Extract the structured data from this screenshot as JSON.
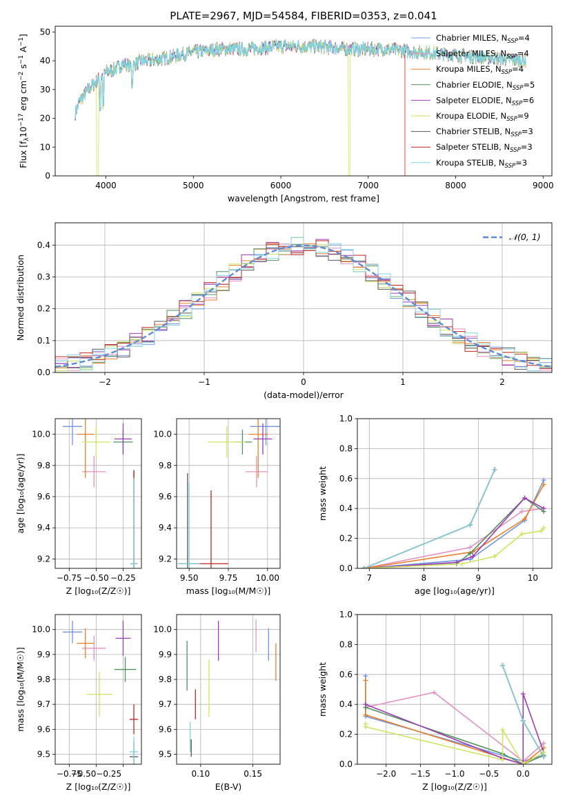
{
  "chart_data": [
    {
      "id": "spectrum",
      "type": "line",
      "title": "PLATE=2967, MJD=54584, FIBERID=0353, z=0.041",
      "xlabel": "wavelength [Angstrom, rest frame]",
      "ylabel_parts": [
        "Flux [f",
        "λ",
        "10",
        "−17",
        " erg cm",
        "−2",
        " s",
        "−1",
        " A",
        "−1",
        "]"
      ],
      "xlim": [
        3420,
        9100
      ],
      "ylim": [
        0,
        52
      ],
      "xticks": [
        4000,
        5000,
        6000,
        7000,
        8000,
        9000
      ],
      "yticks": [
        0,
        10,
        20,
        30,
        40,
        50
      ],
      "grid": false,
      "legend_position": "top-right",
      "trend_x": [
        3650,
        3700,
        3800,
        3900,
        4000,
        4100,
        4200,
        4300,
        4400,
        4500,
        4700,
        5000,
        5300,
        5600,
        6000,
        6400,
        6800,
        7200,
        7600,
        8000,
        8400,
        8800
      ],
      "trend_y": [
        22,
        26,
        30,
        33,
        36,
        37,
        39,
        38,
        40,
        40,
        41,
        43,
        44,
        44,
        45,
        45,
        44,
        44,
        43,
        42,
        41,
        40
      ],
      "legend": [
        {
          "label": "Chabrier MILES, N",
          "sub": "SSP",
          "suffix": "=4",
          "color": "#6f95e0"
        },
        {
          "label": "Salpeter MILES, N",
          "sub": "SSP",
          "suffix": "=4",
          "color": "#e48fc2"
        },
        {
          "label": "Kroupa MILES, N",
          "sub": "SSP",
          "suffix": "=4",
          "color": "#e97f2a"
        },
        {
          "label": "Chabrier ELODIE, N",
          "sub": "SSP",
          "suffix": "=5",
          "color": "#4f8f5c"
        },
        {
          "label": "Salpeter ELODIE, N",
          "sub": "SSP",
          "suffix": "=6",
          "color": "#9b3cb5"
        },
        {
          "label": "Kroupa ELODIE, N",
          "sub": "SSP",
          "suffix": "=9",
          "color": "#cfe35f"
        },
        {
          "label": "Chabrier STELIB, N",
          "sub": "SSP",
          "suffix": "=3",
          "color": "#555555"
        },
        {
          "label": "Salpeter STELIB, N",
          "sub": "SSP",
          "suffix": "=3",
          "color": "#c2241e"
        },
        {
          "label": "Kroupa STELIB, N",
          "sub": "SSP",
          "suffix": "=3",
          "color": "#7fd3e0"
        }
      ]
    },
    {
      "id": "residuals",
      "type": "area",
      "xlabel": "(data-model)/error",
      "ylabel": "Normed distribution",
      "xlim": [
        -2.5,
        2.5
      ],
      "ylim": [
        0,
        0.47
      ],
      "xticks": [
        -2,
        -1,
        0,
        1,
        2
      ],
      "xticklabels": [
        "−2",
        "−1",
        "0",
        "1",
        "2"
      ],
      "yticks": [
        0.0,
        0.1,
        0.2,
        0.3,
        0.4
      ],
      "grid": true,
      "legend_position": "top-right",
      "reference_label": "𝒩(0, 1)",
      "reference_color": "#5d8ad6",
      "bin_width": 0.125
    },
    {
      "id": "age-vs-Z",
      "type": "scatter",
      "xlabel": "Z [log₁₀(Z/Z☉)]",
      "ylabel": "age  [log₁₀(age/yr)]",
      "xlim": [
        -0.88,
        -0.08
      ],
      "ylim": [
        9.14,
        10.1
      ],
      "xticks": [
        -0.75,
        -0.5,
        -0.25
      ],
      "xticklabels": [
        "−0.75",
        "−0.50",
        "−0.25"
      ],
      "yticks": [
        9.2,
        9.4,
        9.6,
        9.8,
        10.0
      ],
      "grid": true,
      "points": [
        {
          "x": -0.72,
          "y": 10.05,
          "xerr": 0.09,
          "yerr": 0.12,
          "color": "#6f95e0"
        },
        {
          "x": -0.52,
          "y": 9.76,
          "xerr": 0.11,
          "yerr": 0.1,
          "color": "#e48fc2"
        },
        {
          "x": -0.6,
          "y": 10.0,
          "xerr": 0.08,
          "yerr": 0.28,
          "color": "#e97f2a"
        },
        {
          "x": -0.25,
          "y": 9.95,
          "xerr": 0.09,
          "yerr": 0.08,
          "color": "#4f8f5c"
        },
        {
          "x": -0.25,
          "y": 9.97,
          "xerr": 0.08,
          "yerr": 0.1,
          "color": "#9b3cb5"
        },
        {
          "x": -0.5,
          "y": 9.95,
          "xerr": 0.13,
          "yerr": 0.1,
          "color": "#cfe35f"
        },
        {
          "x": -0.15,
          "y": 9.17,
          "xerr": 0.03,
          "yerr": 0.6,
          "color": "#555555"
        },
        {
          "x": -0.15,
          "y": 9.17,
          "xerr": 0.03,
          "yerr": 0.6,
          "color": "#c2241e"
        },
        {
          "x": -0.15,
          "y": 9.17,
          "xerr": 0.03,
          "yerr": 0.55,
          "color": "#7fd3e0"
        }
      ]
    },
    {
      "id": "age-vs-mass",
      "type": "scatter",
      "xlabel": "mass [log₁₀(M/M☉)]",
      "xlim": [
        9.42,
        10.08
      ],
      "ylim": [
        9.14,
        10.1
      ],
      "xticks": [
        9.5,
        9.75,
        10.0
      ],
      "xticklabels": [
        "9.50",
        "9.75",
        "10.00"
      ],
      "yticks": [
        9.2,
        9.4,
        9.6,
        9.8,
        10.0
      ],
      "grid": true,
      "points": [
        {
          "x": 9.99,
          "y": 10.05,
          "xerr": 0.1,
          "yerr": 0.12,
          "color": "#6f95e0"
        },
        {
          "x": 9.93,
          "y": 9.76,
          "xerr": 0.07,
          "yerr": 0.1,
          "color": "#e48fc2"
        },
        {
          "x": 9.94,
          "y": 10.0,
          "xerr": 0.06,
          "yerr": 0.28,
          "color": "#e97f2a"
        },
        {
          "x": 9.84,
          "y": 9.95,
          "xerr": 0.06,
          "yerr": 0.08,
          "color": "#4f8f5c"
        },
        {
          "x": 9.97,
          "y": 9.97,
          "xerr": 0.06,
          "yerr": 0.1,
          "color": "#9b3cb5"
        },
        {
          "x": 9.74,
          "y": 9.95,
          "xerr": 0.12,
          "yerr": 0.1,
          "color": "#cfe35f"
        },
        {
          "x": 9.49,
          "y": 9.17,
          "xerr": 0.06,
          "yerr": 0.58,
          "color": "#555555"
        },
        {
          "x": 9.64,
          "y": 9.17,
          "xerr": 0.11,
          "yerr": 0.47,
          "color": "#c2241e"
        },
        {
          "x": 9.5,
          "y": 9.17,
          "xerr": 0.07,
          "yerr": 0.52,
          "color": "#7fd3e0"
        }
      ]
    },
    {
      "id": "massweight-vs-age",
      "type": "line",
      "xlabel": "age  [log₁₀(age/yr)]",
      "ylabel": "mass weight",
      "xlim": [
        6.78,
        10.35
      ],
      "ylim": [
        0,
        1.0
      ],
      "xticks": [
        7,
        8,
        9,
        10
      ],
      "yticks": [
        0.0,
        0.2,
        0.4,
        0.6,
        0.8,
        1.0
      ],
      "grid": true,
      "series": [
        {
          "color": "#6f95e0",
          "x": [
            6.9,
            8.85,
            9.85,
            10.2
          ],
          "y": [
            0.0,
            0.06,
            0.32,
            0.59
          ]
        },
        {
          "color": "#e48fc2",
          "x": [
            6.9,
            8.85,
            9.8,
            10.2
          ],
          "y": [
            0.0,
            0.14,
            0.38,
            0.4
          ]
        },
        {
          "color": "#e97f2a",
          "x": [
            6.9,
            8.9,
            9.85,
            10.2
          ],
          "y": [
            0.0,
            0.11,
            0.33,
            0.56
          ]
        },
        {
          "color": "#4f8f5c",
          "x": [
            6.9,
            8.6,
            8.85,
            9.85,
            10.2
          ],
          "y": [
            0.0,
            0.03,
            0.1,
            0.47,
            0.38
          ]
        },
        {
          "color": "#9b3cb5",
          "x": [
            6.9,
            8.6,
            8.9,
            9.85,
            10.2
          ],
          "y": [
            0.0,
            0.04,
            0.08,
            0.47,
            0.4
          ]
        },
        {
          "color": "#cfe35f",
          "x": [
            6.9,
            8.7,
            9.3,
            9.8,
            10.15,
            10.2
          ],
          "y": [
            0.0,
            0.03,
            0.08,
            0.23,
            0.25,
            0.27
          ]
        },
        {
          "color": "#555555",
          "x": [
            6.9,
            8.85,
            9.3
          ],
          "y": [
            0.0,
            0.29,
            0.66
          ]
        },
        {
          "color": "#c2241e",
          "x": [
            6.9,
            8.85,
            9.3
          ],
          "y": [
            0.0,
            0.29,
            0.66
          ]
        },
        {
          "color": "#7fd3e0",
          "x": [
            6.9,
            8.85,
            9.3
          ],
          "y": [
            0.0,
            0.29,
            0.66
          ]
        }
      ]
    },
    {
      "id": "mass-vs-Z",
      "type": "scatter",
      "xlabel": "Z [log₁₀(Z/Z☉)]",
      "ylabel": "mass [log₁₀(M/M☉)]",
      "xlim": [
        -0.88,
        -0.08
      ],
      "ylim": [
        9.46,
        10.06
      ],
      "xticks": [
        -0.75,
        -0.5,
        -0.25
      ],
      "xticklabels": [
        "−0.75",
        "−0.50−0.25",
        ""
      ],
      "yticks": [
        9.5,
        9.6,
        9.7,
        9.8,
        9.9,
        10.0
      ],
      "grid": true,
      "points": [
        {
          "x": -0.72,
          "y": 9.99,
          "xerr": 0.09,
          "yerr": 0.045,
          "color": "#6f95e0"
        },
        {
          "x": -0.52,
          "y": 9.925,
          "xerr": 0.11,
          "yerr": 0.05,
          "color": "#e48fc2"
        },
        {
          "x": -0.6,
          "y": 9.945,
          "xerr": 0.08,
          "yerr": 0.06,
          "color": "#e97f2a"
        },
        {
          "x": -0.23,
          "y": 9.84,
          "xerr": 0.1,
          "yerr": 0.05,
          "color": "#4f8f5c"
        },
        {
          "x": -0.25,
          "y": 9.965,
          "xerr": 0.07,
          "yerr": 0.07,
          "color": "#9b3cb5"
        },
        {
          "x": -0.47,
          "y": 9.74,
          "xerr": 0.12,
          "yerr": 0.09,
          "color": "#cfe35f"
        },
        {
          "x": -0.15,
          "y": 9.49,
          "xerr": 0.04,
          "yerr": 0.06,
          "color": "#555555"
        },
        {
          "x": -0.15,
          "y": 9.64,
          "xerr": 0.04,
          "yerr": 0.06,
          "color": "#c2241e"
        },
        {
          "x": -0.15,
          "y": 9.51,
          "xerr": 0.04,
          "yerr": 0.06,
          "color": "#7fd3e0"
        }
      ]
    },
    {
      "id": "mass-vs-EBV",
      "type": "scatter",
      "xlabel": "E(B-V)",
      "xlim": [
        0.077,
        0.176
      ],
      "ylim": [
        9.46,
        10.06
      ],
      "xticks": [
        0.1,
        0.15
      ],
      "xticklabels": [
        "0.10",
        "0.15"
      ],
      "yticks": [
        9.5,
        9.6,
        9.7,
        9.8,
        9.9,
        10.0
      ],
      "grid": true,
      "points": [
        {
          "x": 0.165,
          "y": 9.94,
          "yerr": 0.065,
          "color": "#6f95e0"
        },
        {
          "x": 0.153,
          "y": 9.975,
          "yerr": 0.065,
          "color": "#e48fc2"
        },
        {
          "x": 0.172,
          "y": 9.87,
          "yerr": 0.075,
          "color": "#e97f2a"
        },
        {
          "x": 0.087,
          "y": 9.855,
          "yerr": 0.1,
          "color": "#4f8f5c"
        },
        {
          "x": 0.117,
          "y": 9.955,
          "yerr": 0.08,
          "color": "#9b3cb5"
        },
        {
          "x": 0.108,
          "y": 9.765,
          "yerr": 0.115,
          "color": "#cfe35f"
        },
        {
          "x": 0.091,
          "y": 9.525,
          "yerr": 0.035,
          "color": "#555555"
        },
        {
          "x": 0.095,
          "y": 9.7,
          "yerr": 0.06,
          "color": "#c2241e"
        },
        {
          "x": 0.09,
          "y": 9.57,
          "yerr": 0.06,
          "color": "#7fd3e0"
        }
      ]
    },
    {
      "id": "massweight-vs-Z",
      "type": "line",
      "xlabel": "Z [log₁₀(Z/Z☉)]",
      "ylabel": "mass weight",
      "xlim": [
        -2.42,
        0.42
      ],
      "ylim": [
        0,
        1.0
      ],
      "xticks": [
        -2.0,
        -1.5,
        -1.0,
        -0.5,
        0.0
      ],
      "xticklabels": [
        "−2.0",
        "−1.5",
        "−1.0",
        "−0.5",
        "0.0"
      ],
      "yticks": [
        0.0,
        0.2,
        0.4,
        0.6,
        0.8,
        1.0
      ],
      "grid": true,
      "series": [
        {
          "color": "#6f95e0",
          "x": [
            -2.3,
            -2.3,
            0.0,
            0.3
          ],
          "y": [
            0.59,
            0.32,
            0.02,
            0.06
          ]
        },
        {
          "color": "#e48fc2",
          "x": [
            -2.3,
            -1.3,
            0.0,
            0.3
          ],
          "y": [
            0.38,
            0.48,
            0.02,
            0.14
          ]
        },
        {
          "color": "#e97f2a",
          "x": [
            -2.3,
            -2.3,
            0.0,
            0.3
          ],
          "y": [
            0.56,
            0.33,
            0.0,
            0.11
          ]
        },
        {
          "color": "#4f8f5c",
          "x": [
            -2.3,
            -0.3,
            0.0,
            0.3
          ],
          "y": [
            0.38,
            0.07,
            0.0,
            0.06
          ]
        },
        {
          "color": "#9b3cb5",
          "x": [
            -2.3,
            -0.3,
            0.0,
            0.0,
            0.3
          ],
          "y": [
            0.4,
            0.04,
            0.0,
            0.47,
            0.08
          ]
        },
        {
          "color": "#cfe35f",
          "x": [
            -2.3,
            -2.3,
            -0.3,
            -0.3,
            0.0,
            0.3
          ],
          "y": [
            0.27,
            0.25,
            0.03,
            0.23,
            0.0,
            0.08
          ]
        },
        {
          "color": "#555555",
          "x": [
            -0.3,
            0.0,
            0.3
          ],
          "y": [
            0.66,
            0.29,
            0.05
          ]
        },
        {
          "color": "#c2241e",
          "x": [
            -0.3,
            0.0,
            0.3
          ],
          "y": [
            0.66,
            0.29,
            0.05
          ]
        },
        {
          "color": "#7fd3e0",
          "x": [
            -0.3,
            0.0,
            0.3
          ],
          "y": [
            0.66,
            0.29,
            0.05
          ]
        }
      ]
    }
  ]
}
